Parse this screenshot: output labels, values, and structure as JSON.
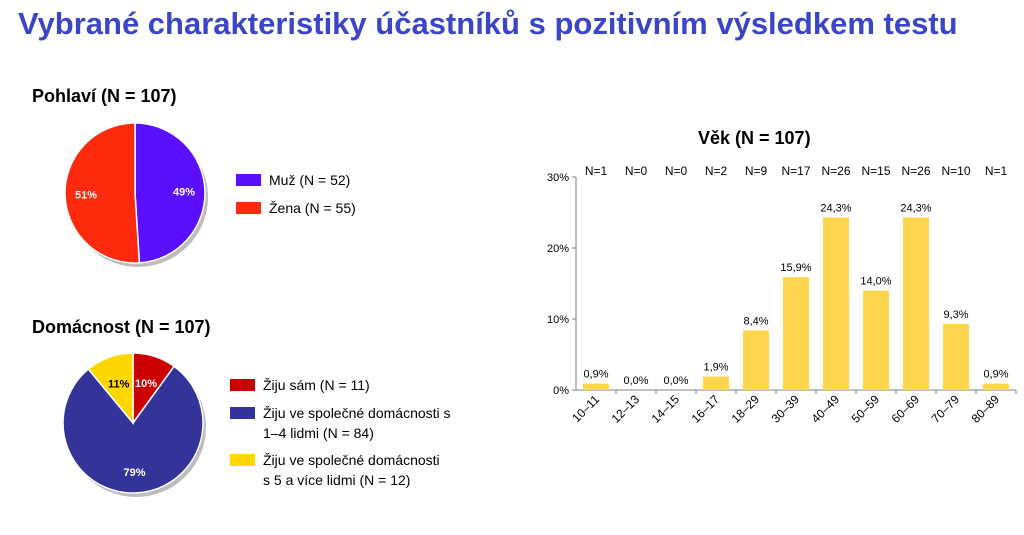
{
  "page_title": "Vybrané charakteristiky účastníků s pozitivním výsledkem testu",
  "chart_data": [
    {
      "type": "pie",
      "title": "Pohlaví (N = 107)",
      "slices": [
        {
          "label": "Muž (N = 52)",
          "value": 49,
          "display": "49%",
          "color": "#5a10ff"
        },
        {
          "label": "Žena (N = 55)",
          "value": 51,
          "display": "51%",
          "color": "#ff2a0e"
        }
      ],
      "legend_position": "right"
    },
    {
      "type": "pie",
      "title": "Domácnost (N = 107)",
      "slices": [
        {
          "label_lines": [
            "Žiju sám (N = 11)"
          ],
          "value": 10,
          "display": "10%",
          "color": "#cc0000"
        },
        {
          "label_lines": [
            "Žiju ve společné domácnosti s",
            "1–4 lidmi (N = 84)"
          ],
          "value": 79,
          "display": "79%",
          "color": "#333399"
        },
        {
          "label_lines": [
            "Žiju ve společné domácnosti",
            "s 5 a více lidmi (N = 12)"
          ],
          "value": 11,
          "display": "11%",
          "color": "#ffd700"
        }
      ],
      "legend_position": "right"
    },
    {
      "type": "bar",
      "title": "Věk (N = 107)",
      "categories": [
        "10–11",
        "12–13",
        "14–15",
        "16–17",
        "18–29",
        "30–39",
        "40–49",
        "50–59",
        "60–69",
        "70–79",
        "80–89"
      ],
      "values": [
        0.9,
        0.0,
        0.0,
        1.9,
        8.4,
        15.9,
        24.3,
        14.0,
        24.3,
        9.3,
        0.9
      ],
      "value_labels": [
        "0,9%",
        "0,0%",
        "0,0%",
        "1,9%",
        "8,4%",
        "15,9%",
        "24,3%",
        "14,0%",
        "24,3%",
        "9,3%",
        "0,9%"
      ],
      "counts": [
        "N=1",
        "N=0",
        "N=0",
        "N=2",
        "N=9",
        "N=17",
        "N=26",
        "N=15",
        "N=26",
        "N=10",
        "N=1"
      ],
      "ylim": [
        0,
        30
      ],
      "yticks": [
        "0%",
        "10%",
        "20%",
        "30%"
      ],
      "bar_color": "#ffd54f",
      "grid": false
    }
  ]
}
